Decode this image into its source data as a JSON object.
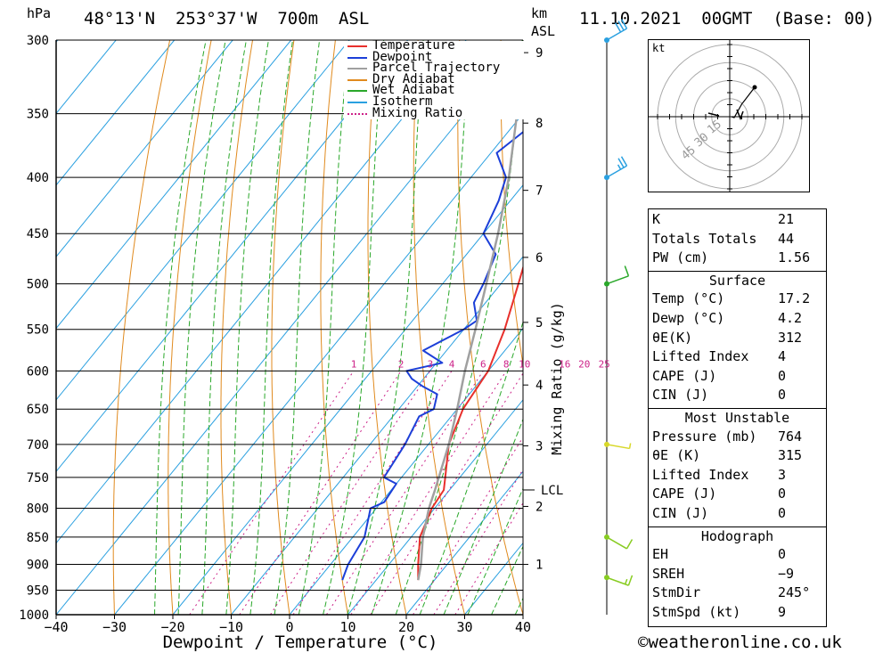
{
  "header": {
    "location": "48°13'N  253°37'W  700m  ASL",
    "date": "11.10.2021  00GMT  (Base: 00)",
    "hpa_label": "hPa",
    "km_label": "km",
    "asl_label": "ASL"
  },
  "chart_data": {
    "type": "line",
    "title": "48°13'N  253°37'W  700m  ASL",
    "xlabel": "Dewpoint / Temperature (°C)",
    "ylabel": "hPa",
    "y_log": true,
    "xlim": [
      -40,
      40
    ],
    "ylim": [
      1000,
      300
    ],
    "x_ticks": [
      -40,
      -30,
      -20,
      -10,
      0,
      10,
      20,
      30,
      40
    ],
    "x_tick_labels": [
      "−40",
      "−30",
      "−20",
      "−10",
      "0",
      "10",
      "20",
      "30",
      "40"
    ],
    "pressure_levels": [
      300,
      350,
      400,
      450,
      500,
      550,
      600,
      650,
      700,
      750,
      800,
      850,
      900,
      950,
      1000
    ],
    "km_ticks": [
      {
        "km": 1,
        "p": 900
      },
      {
        "km": 2,
        "p": 797
      },
      {
        "km": 3,
        "p": 702
      },
      {
        "km": 4,
        "p": 618
      },
      {
        "km": 5,
        "p": 542
      },
      {
        "km": 6,
        "p": 473
      },
      {
        "km": 7,
        "p": 411
      },
      {
        "km": 8,
        "p": 357
      },
      {
        "km": 9,
        "p": 308
      }
    ],
    "lcl_label": "LCL",
    "lcl_pressure": 770,
    "mixing_ratio_title": "Mixing Ratio (g/kg)",
    "mixing_ratio_values": [
      1,
      2,
      3,
      4,
      6,
      8,
      10,
      16,
      20,
      25
    ],
    "legend": {
      "position": "top-center",
      "entries": [
        "Temperature",
        "Dewpoint",
        "Parcel Trajectory",
        "Dry Adiabat",
        "Wet Adiabat",
        "Isotherm",
        "Mixing Ratio"
      ]
    },
    "colors": {
      "temperature": "#e8302c",
      "dewpoint": "#1c3fd8",
      "parcel": "#a0a0a0",
      "dry_adiabat": "#e08a1e",
      "wet_adiabat": "#2aa82a",
      "isotherm": "#2aa0e0",
      "mixing_ratio": "#cc2288"
    },
    "series": [
      {
        "name": "Temperature",
        "points": [
          [
            930,
            17.2
          ],
          [
            900,
            15.0
          ],
          [
            850,
            11.5
          ],
          [
            800,
            9.5
          ],
          [
            770,
            9.0
          ],
          [
            750,
            7.5
          ],
          [
            700,
            3.5
          ],
          [
            650,
            1.0
          ],
          [
            600,
            0.0
          ],
          [
            550,
            -3.0
          ],
          [
            500,
            -7.0
          ],
          [
            450,
            -11.5
          ],
          [
            400,
            -18.0
          ],
          [
            350,
            -26.0
          ],
          [
            300,
            -35.0
          ]
        ]
      },
      {
        "name": "Dewpoint",
        "points": [
          [
            930,
            4.2
          ],
          [
            900,
            3.0
          ],
          [
            850,
            2.0
          ],
          [
            800,
            -1.0
          ],
          [
            790,
            0.5
          ],
          [
            760,
            0.0
          ],
          [
            750,
            -3.0
          ],
          [
            700,
            -4.0
          ],
          [
            660,
            -5.5
          ],
          [
            650,
            -4.0
          ],
          [
            630,
            -5.5
          ],
          [
            620,
            -9.0
          ],
          [
            610,
            -12.0
          ],
          [
            600,
            -14.0
          ],
          [
            590,
            -9.0
          ],
          [
            575,
            -14.0
          ],
          [
            550,
            -10.0
          ],
          [
            540,
            -9.0
          ],
          [
            520,
            -12.0
          ],
          [
            500,
            -13.0
          ],
          [
            470,
            -15.0
          ],
          [
            450,
            -20.0
          ],
          [
            420,
            -22.0
          ],
          [
            400,
            -24.0
          ],
          [
            380,
            -29.0
          ],
          [
            350,
            -26.0
          ],
          [
            330,
            -27.0
          ],
          [
            310,
            -28.0
          ],
          [
            300,
            -32.0
          ]
        ]
      },
      {
        "name": "Parcel Trajectory",
        "points": [
          [
            930,
            17.2
          ],
          [
            900,
            15.5
          ],
          [
            850,
            12.0
          ],
          [
            800,
            9.0
          ],
          [
            770,
            7.5
          ],
          [
            700,
            3.5
          ],
          [
            650,
            0.0
          ],
          [
            600,
            -4.0
          ],
          [
            550,
            -8.0
          ],
          [
            500,
            -12.5
          ],
          [
            450,
            -17.5
          ],
          [
            400,
            -23.5
          ],
          [
            350,
            -31.0
          ],
          [
            300,
            -39.0
          ]
        ]
      }
    ]
  },
  "wind_barbs": [
    {
      "p": 300,
      "dir": 300,
      "kt": 30
    },
    {
      "p": 400,
      "dir": 300,
      "kt": 25
    },
    {
      "p": 500,
      "dir": 290,
      "kt": 10
    },
    {
      "p": 700,
      "dir": 260,
      "kt": 5
    },
    {
      "p": 850,
      "dir": 240,
      "kt": 10
    },
    {
      "p": 925,
      "dir": 250,
      "kt": 15
    }
  ],
  "hodograph": {
    "unit": "kt",
    "ring_labels": [
      "15",
      "30",
      "45"
    ],
    "points": [
      [
        2,
        0
      ],
      [
        5,
        -1
      ],
      [
        14,
        15
      ],
      [
        15,
        16
      ],
      [
        28,
        33
      ]
    ]
  },
  "indices": {
    "general": [
      {
        "label": "K",
        "value": "21"
      },
      {
        "label": "Totals Totals",
        "value": "44"
      },
      {
        "label": "PW (cm)",
        "value": "1.56"
      }
    ],
    "surface_title": "Surface",
    "surface": [
      {
        "label": "Temp (°C)",
        "value": "17.2"
      },
      {
        "label": "Dewp (°C)",
        "value": "4.2"
      },
      {
        "label": "θE(K)",
        "value": "312"
      },
      {
        "label": "Lifted Index",
        "value": "4"
      },
      {
        "label": "CAPE (J)",
        "value": "0"
      },
      {
        "label": "CIN (J)",
        "value": "0"
      }
    ],
    "mu_title": "Most Unstable",
    "mu": [
      {
        "label": "Pressure (mb)",
        "value": "764"
      },
      {
        "label": "θE (K)",
        "value": "315"
      },
      {
        "label": "Lifted Index",
        "value": "3"
      },
      {
        "label": "CAPE (J)",
        "value": "0"
      },
      {
        "label": "CIN (J)",
        "value": "0"
      }
    ],
    "hodo_title": "Hodograph",
    "hodo": [
      {
        "label": "EH",
        "value": "0"
      },
      {
        "label": "SREH",
        "value": "−9"
      },
      {
        "label": "StmDir",
        "value": "245°"
      },
      {
        "label": "StmSpd (kt)",
        "value": "9"
      }
    ]
  },
  "footer": {
    "credit": "©weatheronline.co.uk"
  }
}
